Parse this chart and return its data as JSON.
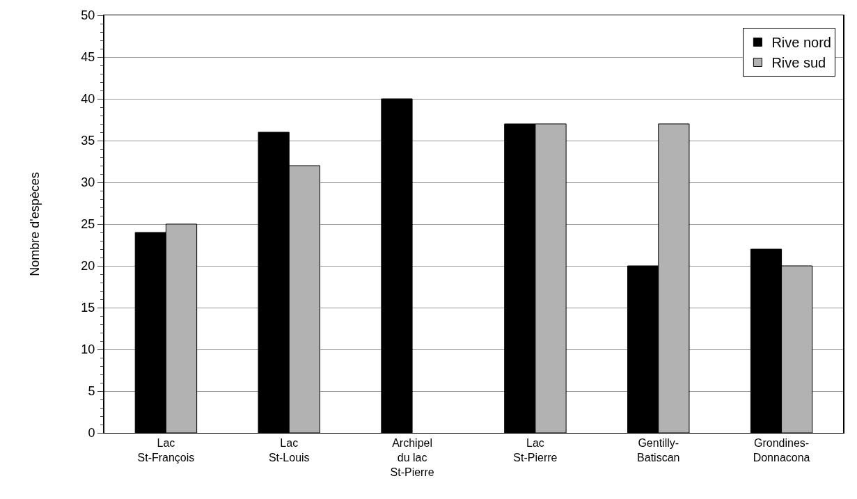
{
  "chart_data": {
    "type": "bar",
    "ylabel": "Nombre d'espèces",
    "categories": [
      "Lac\nSt-François",
      "Lac\nSt-Louis",
      "Archipel\ndu lac\nSt-Pierre",
      "Lac\nSt-Pierre",
      "Gentilly-\nBatiscan",
      "Grondines-\nDonnacona"
    ],
    "series": [
      {
        "name": "Rive nord",
        "color": "#000000",
        "values": [
          24,
          36,
          40,
          37,
          20,
          22
        ]
      },
      {
        "name": "Rive sud",
        "color": "#b2b2b2",
        "values": [
          25,
          32,
          null,
          37,
          37,
          20
        ]
      }
    ],
    "ylim": [
      0,
      50
    ],
    "yticks": [
      0,
      5,
      10,
      15,
      20,
      25,
      30,
      35,
      40,
      45,
      50
    ],
    "grid": "y",
    "legend": "top right"
  }
}
